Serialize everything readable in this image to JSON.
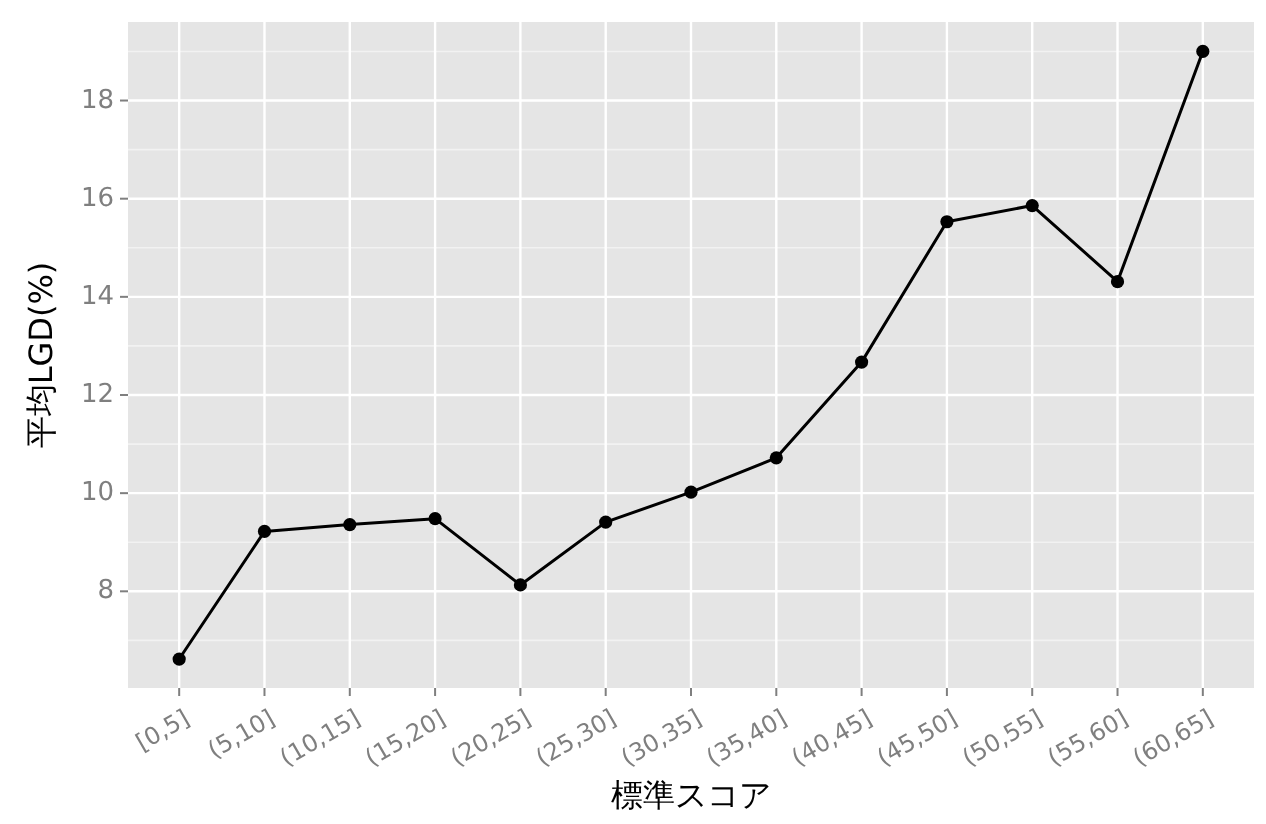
{
  "chart_data": {
    "type": "line",
    "xlabel": "標準スコア",
    "ylabel": "平均LGD(%)",
    "categories": [
      "[0,5]",
      "(5,10]",
      "(10,15]",
      "(15,20]",
      "(20,25]",
      "(25,30]",
      "(30,35]",
      "(35,40]",
      "(40,45]",
      "(45,50]",
      "(50,55]",
      "(55,60]",
      "(60,65]"
    ],
    "series": [
      {
        "color": "#000000",
        "values": [
          6.62,
          9.22,
          9.36,
          9.48,
          8.13,
          9.41,
          10.02,
          10.72,
          12.67,
          15.53,
          15.86,
          14.31,
          19.0
        ]
      }
    ],
    "ylim": [
      6.03,
      19.6
    ],
    "yticks": [
      8,
      10,
      12,
      14,
      16,
      18
    ],
    "grid": true,
    "marker": "circle",
    "line_style": "solid"
  }
}
